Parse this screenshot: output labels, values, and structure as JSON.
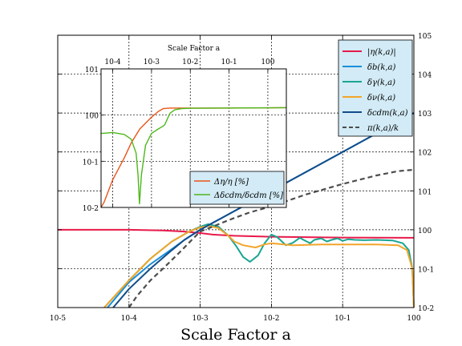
{
  "chart_data": [
    {
      "type": "line",
      "title": "",
      "xlabel": "Scale Factor  a",
      "ylabel": "",
      "xscale": "log",
      "yscale": "log",
      "xlim": [
        1e-05,
        1
      ],
      "ylim": [
        0.01,
        100000
      ],
      "grid": true,
      "legend_position": "top-right",
      "x_tick_labels": [
        "10-5",
        "10-4",
        "10-3",
        "10-2",
        "10-1",
        "100"
      ],
      "y_tick_labels": [
        "10-2",
        "10-1",
        "100",
        "101",
        "102",
        "103",
        "104",
        "105"
      ],
      "series": [
        {
          "name": "|η(k,a)|",
          "color": "#e8194a",
          "style": "solid",
          "points": [
            [
              1e-05,
              1.0
            ],
            [
              0.0001,
              1.0
            ],
            [
              0.0003,
              0.96
            ],
            [
              0.0006,
              0.9
            ],
            [
              0.001,
              0.82
            ],
            [
              0.0015,
              0.75
            ],
            [
              0.003,
              0.7
            ],
            [
              0.01,
              0.66
            ],
            [
              0.1,
              0.63
            ],
            [
              1,
              0.62
            ]
          ]
        },
        {
          "name": "δb(k,a)",
          "color": "#1a8fd8",
          "style": "solid",
          "points": [
            [
              5e-05,
              0.01
            ],
            [
              0.0001,
              0.045
            ],
            [
              0.0002,
              0.13
            ],
            [
              0.0004,
              0.32
            ],
            [
              0.0006,
              0.55
            ],
            [
              0.001,
              1.0
            ],
            [
              0.0015,
              1.5
            ],
            [
              0.002,
              2.0
            ],
            [
              0.005,
              5.0
            ],
            [
              0.01,
              10
            ],
            [
              0.03,
              30
            ],
            [
              0.1,
              100
            ],
            [
              0.3,
              300
            ],
            [
              1,
              1000
            ]
          ]
        },
        {
          "name": "δγ(k,a)",
          "color": "#1aa592",
          "style": "solid",
          "points": [
            [
              4.5e-05,
              0.01
            ],
            [
              0.0001,
              0.05
            ],
            [
              0.0002,
              0.18
            ],
            [
              0.0004,
              0.5
            ],
            [
              0.0007,
              0.9
            ],
            [
              0.001,
              1.2
            ],
            [
              0.0013,
              1.4
            ],
            [
              0.0018,
              1.2
            ],
            [
              0.0025,
              0.7
            ],
            [
              0.0032,
              0.38
            ],
            [
              0.004,
              0.2
            ],
            [
              0.005,
              0.15
            ],
            [
              0.0065,
              0.22
            ],
            [
              0.008,
              0.45
            ],
            [
              0.01,
              0.75
            ],
            [
              0.012,
              0.65
            ],
            [
              0.016,
              0.4
            ],
            [
              0.02,
              0.46
            ],
            [
              0.025,
              0.62
            ],
            [
              0.03,
              0.52
            ],
            [
              0.035,
              0.45
            ],
            [
              0.04,
              0.55
            ],
            [
              0.05,
              0.6
            ],
            [
              0.06,
              0.5
            ],
            [
              0.07,
              0.55
            ],
            [
              0.085,
              0.6
            ],
            [
              0.1,
              0.52
            ],
            [
              0.12,
              0.57
            ],
            [
              0.15,
              0.55
            ],
            [
              0.2,
              0.54
            ],
            [
              0.3,
              0.55
            ],
            [
              0.5,
              0.53
            ],
            [
              0.7,
              0.45
            ],
            [
              0.85,
              0.3
            ],
            [
              0.95,
              0.1
            ],
            [
              1,
              0.01
            ]
          ]
        },
        {
          "name": "δν(k,a)",
          "color": "#f2a52a",
          "style": "solid",
          "points": [
            [
              4.5e-05,
              0.01
            ],
            [
              0.0001,
              0.05
            ],
            [
              0.0002,
              0.18
            ],
            [
              0.0004,
              0.5
            ],
            [
              0.0007,
              0.9
            ],
            [
              0.001,
              1.15
            ],
            [
              0.0013,
              1.25
            ],
            [
              0.0018,
              1.1
            ],
            [
              0.0025,
              0.7
            ],
            [
              0.003,
              0.5
            ],
            [
              0.004,
              0.4
            ],
            [
              0.006,
              0.35
            ],
            [
              0.008,
              0.42
            ],
            [
              0.01,
              0.45
            ],
            [
              0.02,
              0.4
            ],
            [
              0.05,
              0.42
            ],
            [
              0.1,
              0.42
            ],
            [
              0.3,
              0.42
            ],
            [
              0.6,
              0.4
            ],
            [
              0.8,
              0.3
            ],
            [
              0.95,
              0.1
            ],
            [
              1,
              0.01
            ]
          ]
        },
        {
          "name": "δcdm(k,a)",
          "color": "#124d8a",
          "style": "solid",
          "points": [
            [
              6e-05,
              0.01
            ],
            [
              0.0001,
              0.03
            ],
            [
              0.0002,
              0.1
            ],
            [
              0.0004,
              0.3
            ],
            [
              0.0006,
              0.55
            ],
            [
              0.001,
              1.0
            ],
            [
              0.0015,
              1.5
            ],
            [
              0.002,
              2.0
            ],
            [
              0.005,
              5.0
            ],
            [
              0.01,
              10
            ],
            [
              0.03,
              30
            ],
            [
              0.1,
              100
            ],
            [
              0.3,
              300
            ],
            [
              1,
              1000
            ]
          ]
        },
        {
          "name": "π(k,a)/k",
          "color": "#4d4d4d",
          "style": "dashed",
          "points": [
            [
              0.0001,
              0.01
            ],
            [
              0.00013,
              0.02
            ],
            [
              0.0002,
              0.05
            ],
            [
              0.0003,
              0.1
            ],
            [
              0.0005,
              0.25
            ],
            [
              0.0008,
              0.6
            ],
            [
              0.001,
              0.9
            ],
            [
              0.0015,
              1.2
            ],
            [
              0.002,
              1.5
            ],
            [
              0.003,
              2.0
            ],
            [
              0.005,
              2.8
            ],
            [
              0.01,
              4.0
            ],
            [
              0.03,
              8.0
            ],
            [
              0.1,
              15
            ],
            [
              0.3,
              25
            ],
            [
              0.6,
              32
            ],
            [
              1,
              35
            ]
          ]
        }
      ]
    },
    {
      "type": "line",
      "title": "",
      "xlabel": "Scale Factor  a",
      "ylabel": "",
      "xscale": "log",
      "yscale": "log",
      "xlim": [
        5e-05,
        3
      ],
      "ylim": [
        0.01,
        10
      ],
      "grid": true,
      "legend_position": "bottom-right",
      "x_tick_labels": [
        "10-4",
        "10-3",
        "10-2",
        "10-1",
        "100"
      ],
      "y_tick_labels": [
        "10-2",
        "10-1",
        "100",
        "101"
      ],
      "series": [
        {
          "name": "Δη/η  [%]",
          "color": "#e8551a",
          "style": "solid",
          "points": [
            [
              5e-05,
              0.01
            ],
            [
              6e-05,
              0.013
            ],
            [
              0.0001,
              0.04
            ],
            [
              0.0002,
              0.12
            ],
            [
              0.0003,
              0.25
            ],
            [
              0.0005,
              0.5
            ],
            [
              0.001,
              0.9
            ],
            [
              0.0015,
              1.2
            ],
            [
              0.002,
              1.38
            ],
            [
              0.003,
              1.42
            ],
            [
              0.01,
              1.42
            ],
            [
              0.1,
              1.42
            ],
            [
              3,
              1.45
            ]
          ]
        },
        {
          "name": "Δδcdm/δcdm  [%]",
          "color": "#4db81a",
          "style": "solid",
          "points": [
            [
              5e-05,
              0.4
            ],
            [
              0.0001,
              0.42
            ],
            [
              0.0002,
              0.38
            ],
            [
              0.0003,
              0.3
            ],
            [
              0.0004,
              0.15
            ],
            [
              0.00045,
              0.05
            ],
            [
              0.00049,
              0.012
            ],
            [
              0.00055,
              0.05
            ],
            [
              0.0007,
              0.22
            ],
            [
              0.001,
              0.4
            ],
            [
              0.0015,
              0.5
            ],
            [
              0.002,
              0.58
            ],
            [
              0.0022,
              0.62
            ],
            [
              0.0026,
              0.85
            ],
            [
              0.003,
              1.1
            ],
            [
              0.004,
              1.3
            ],
            [
              0.006,
              1.38
            ],
            [
              0.01,
              1.4
            ],
            [
              3,
              1.45
            ]
          ]
        }
      ]
    }
  ]
}
